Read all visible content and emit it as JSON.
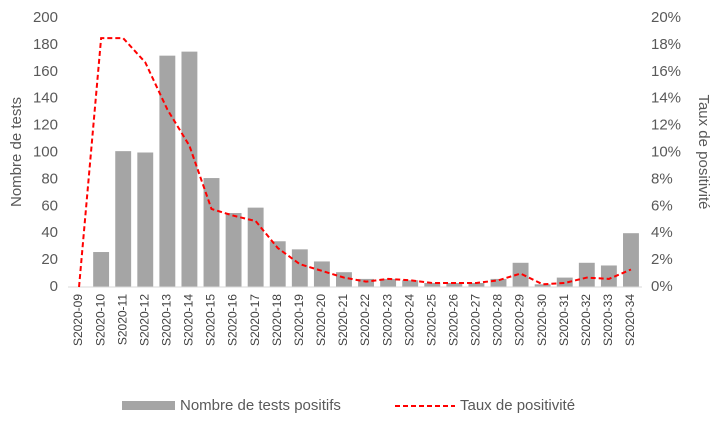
{
  "chart_data": {
    "type": "bar-line",
    "ylabel": "Nombre de tests",
    "y2label": "Taux de positivité",
    "categories": [
      "S2020-09",
      "S2020-10",
      "S2020-11",
      "S2020-12",
      "S2020-13",
      "S2020-14",
      "S2020-15",
      "S2020-16",
      "S2020-17",
      "S2020-18",
      "S2020-19",
      "S2020-20",
      "S2020-21",
      "S2020-22",
      "S2020-23",
      "S2020-24",
      "S2020-25",
      "S2020-26",
      "S2020-27",
      "S2020-28",
      "S2020-29",
      "S2020-30",
      "S2020-31",
      "S2020-32",
      "S2020-33",
      "S2020-34"
    ],
    "series": [
      {
        "name": "Nombre de tests positifs",
        "type": "bar",
        "color": "#a5a5a5",
        "values": [
          0,
          26,
          101,
          100,
          172,
          175,
          81,
          55,
          59,
          34,
          28,
          19,
          11,
          6,
          6,
          5,
          3,
          3,
          3,
          6,
          18,
          2,
          7,
          18,
          16,
          40
        ]
      },
      {
        "name": "Taux de positivité",
        "type": "line",
        "axis": "y2",
        "color": "#ff0000",
        "values": [
          0,
          18.5,
          18.5,
          16.7,
          13.2,
          10.5,
          5.8,
          5.3,
          4.9,
          2.9,
          1.7,
          1.2,
          0.7,
          0.4,
          0.6,
          0.5,
          0.3,
          0.3,
          0.3,
          0.5,
          1.0,
          0.2,
          0.3,
          0.7,
          0.6,
          1.3
        ]
      }
    ],
    "ylim": [
      0,
      200
    ],
    "yticks": [
      0,
      20,
      40,
      60,
      80,
      100,
      120,
      140,
      160,
      180,
      200
    ],
    "y2lim": [
      0,
      20
    ],
    "y2ticks": [
      {
        "value": 0,
        "label": "0%"
      },
      {
        "value": 2,
        "label": "2%"
      },
      {
        "value": 4,
        "label": "4%"
      },
      {
        "value": 6,
        "label": "6%"
      },
      {
        "value": 8,
        "label": "8%"
      },
      {
        "value": 10,
        "label": "10%"
      },
      {
        "value": 12,
        "label": "12%"
      },
      {
        "value": 14,
        "label": "14%"
      },
      {
        "value": 16,
        "label": "16%"
      },
      {
        "value": 18,
        "label": "18%"
      },
      {
        "value": 20,
        "label": "20%"
      }
    ],
    "legend": "bottom"
  }
}
